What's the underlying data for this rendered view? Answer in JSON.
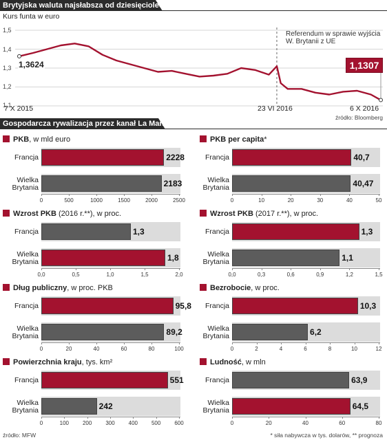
{
  "header": {
    "title": "Brytyjska waluta najsłabsza od dziesięcioleci",
    "subtitle": "Kurs funta w euro",
    "section2_title": "Gospodarcza rywalizacja przez kanał La Manche",
    "source_top": "źródło: Bloomberg",
    "source_bottom": "źródło: MFW",
    "footnote": "* siła nabywcza w tys. dolarów, ** prognoza"
  },
  "colors": {
    "france": "#a3122f",
    "uk": "#5c5c5c",
    "banner": "#2b2b2b",
    "line": "#a3122f"
  },
  "chart_data": [
    {
      "type": "line",
      "title": "Kurs funta w euro",
      "x_labels": [
        "7 X 2015",
        "23 VI 2016",
        "6 X 2016"
      ],
      "y_ticks": [
        "1,5",
        "1,4",
        "1,3",
        "1,2",
        "1,1"
      ],
      "ylim": [
        1.1,
        1.5
      ],
      "start_value": "1,3624",
      "end_value": "1,1307",
      "annotation": "Referendum w sprawie wyjścia W. Brytanii z UE",
      "x": [
        "2015-10-07",
        "2015-10-21",
        "2015-11-04",
        "2015-11-18",
        "2015-12-02",
        "2015-12-16",
        "2015-12-30",
        "2016-01-13",
        "2016-01-27",
        "2016-02-10",
        "2016-02-24",
        "2016-03-09",
        "2016-03-23",
        "2016-04-06",
        "2016-04-20",
        "2016-05-04",
        "2016-05-18",
        "2016-06-01",
        "2016-06-15",
        "2016-06-23",
        "2016-06-27",
        "2016-07-04",
        "2016-07-18",
        "2016-08-01",
        "2016-08-15",
        "2016-08-29",
        "2016-09-12",
        "2016-09-26",
        "2016-10-06"
      ],
      "values": [
        1.3624,
        1.38,
        1.4,
        1.42,
        1.43,
        1.415,
        1.37,
        1.34,
        1.32,
        1.3,
        1.28,
        1.285,
        1.27,
        1.255,
        1.26,
        1.27,
        1.3,
        1.29,
        1.265,
        1.31,
        1.22,
        1.19,
        1.19,
        1.17,
        1.16,
        1.175,
        1.18,
        1.16,
        1.1307
      ],
      "grid": true
    },
    {
      "type": "bar",
      "title": "PKB",
      "unit": ", w mld euro",
      "categories": [
        "Francja",
        "Wielka Brytania"
      ],
      "values": [
        2228,
        2183
      ],
      "labels": [
        "2228",
        "2183"
      ],
      "ticks": [
        "0",
        "500",
        "1000",
        "1500",
        "2000",
        "2500"
      ],
      "xlim": [
        0,
        2500
      ],
      "colors": [
        "red",
        "gray"
      ]
    },
    {
      "type": "bar",
      "title": "PKB per capita",
      "unit": "*",
      "categories": [
        "Francja",
        "Wielka Brytania"
      ],
      "values": [
        40.7,
        40.47
      ],
      "labels": [
        "40,7",
        "40,47"
      ],
      "ticks": [
        "0",
        "10",
        "20",
        "30",
        "40",
        "50"
      ],
      "xlim": [
        0,
        50
      ],
      "colors": [
        "red",
        "gray"
      ]
    },
    {
      "type": "bar",
      "title": "Wzrost PKB",
      "unit": " (2016 r.**), w proc.",
      "categories": [
        "Francja",
        "Wielka Brytania"
      ],
      "values": [
        1.3,
        1.8
      ],
      "labels": [
        "1,3",
        "1,8"
      ],
      "ticks": [
        "0,0",
        "0,5",
        "1,0",
        "1,5",
        "2,0"
      ],
      "xlim": [
        0,
        2
      ],
      "colors": [
        "gray",
        "red"
      ]
    },
    {
      "type": "bar",
      "title": "Wzrost PKB",
      "unit": " (2017 r.**), w proc.",
      "categories": [
        "Francja",
        "Wielka Brytania"
      ],
      "values": [
        1.3,
        1.1
      ],
      "labels": [
        "1,3",
        "1,1"
      ],
      "ticks": [
        "0,0",
        "0,3",
        "0,6",
        "0,9",
        "1,2",
        "1,5"
      ],
      "xlim": [
        0,
        1.5
      ],
      "colors": [
        "red",
        "gray"
      ]
    },
    {
      "type": "bar",
      "title": "Dług publiczny",
      "unit": ", w proc. PKB",
      "categories": [
        "Francja",
        "Wielka Brytania"
      ],
      "values": [
        95.8,
        89.2
      ],
      "labels": [
        "95,8",
        "89,2"
      ],
      "ticks": [
        "0",
        "20",
        "40",
        "60",
        "80",
        "100"
      ],
      "xlim": [
        0,
        100
      ],
      "colors": [
        "red",
        "gray"
      ]
    },
    {
      "type": "bar",
      "title": "Bezrobocie",
      "unit": ", w proc.",
      "categories": [
        "Francja",
        "Wielka Brytania"
      ],
      "values": [
        10.3,
        6.2
      ],
      "labels": [
        "10,3",
        "6,2"
      ],
      "ticks": [
        "0",
        "2",
        "4",
        "6",
        "8",
        "10",
        "12"
      ],
      "xlim": [
        0,
        12
      ],
      "colors": [
        "red",
        "gray"
      ]
    },
    {
      "type": "bar",
      "title": "Powierzchnia kraju",
      "unit": ", tys. km²",
      "categories": [
        "Francja",
        "Wielka Brytania"
      ],
      "values": [
        551,
        242
      ],
      "labels": [
        "551",
        "242"
      ],
      "ticks": [
        "0",
        "100",
        "200",
        "300",
        "400",
        "500",
        "600"
      ],
      "xlim": [
        0,
        600
      ],
      "colors": [
        "red",
        "gray"
      ]
    },
    {
      "type": "bar",
      "title": "Ludność",
      "unit": ", w mln",
      "categories": [
        "Francja",
        "Wielka Brytania"
      ],
      "values": [
        63.9,
        64.5
      ],
      "labels": [
        "63,9",
        "64,5"
      ],
      "ticks": [
        "0",
        "20",
        "40",
        "60",
        "80"
      ],
      "xlim": [
        0,
        80
      ],
      "colors": [
        "gray",
        "red"
      ]
    }
  ]
}
